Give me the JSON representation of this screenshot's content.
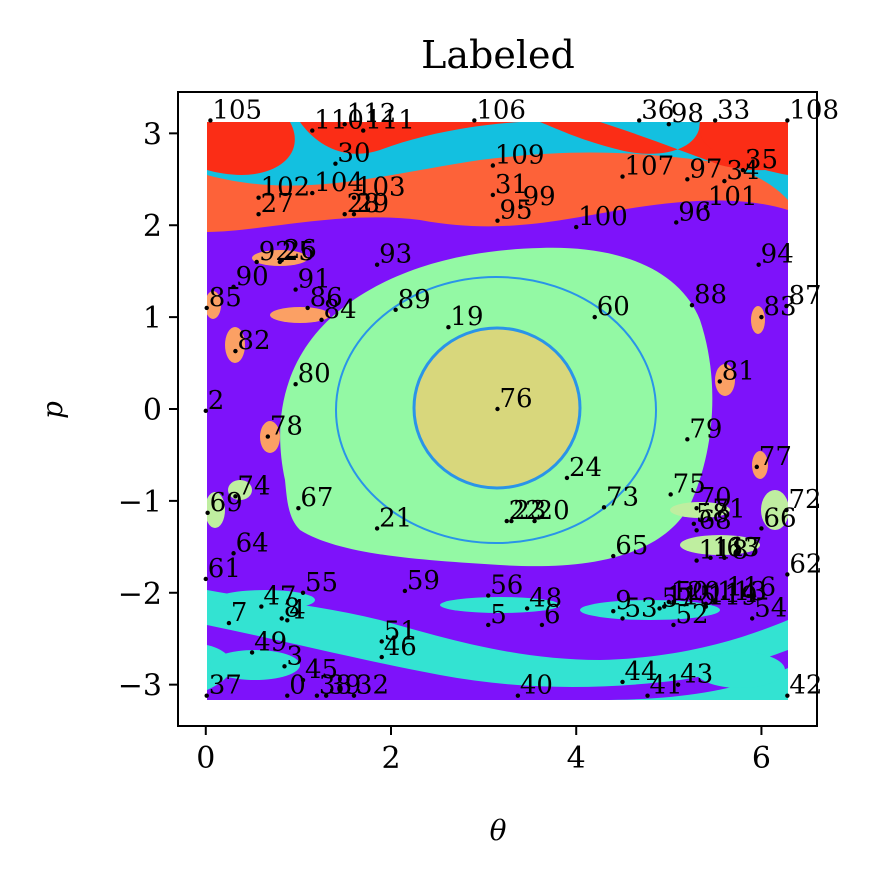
{
  "chart_data": {
    "type": "scatter",
    "title": "Labeled",
    "xlabel": "θ",
    "ylabel": "p",
    "xlim": [
      -0.3,
      6.6
    ],
    "ylim": [
      -3.45,
      3.45
    ],
    "xticks": [
      0,
      2,
      4,
      6
    ],
    "yticks": [
      -3,
      -2,
      -1,
      0,
      1,
      2,
      3
    ],
    "grid": false,
    "background_regions": {
      "description_colors": {
        "purple": "#7e12fa",
        "light_green": "#93f9a4",
        "khaki": "#d8d77c",
        "blue_ring": "#2a94e8",
        "red": "#fb2d16",
        "orange": "#fd6239",
        "cyan": "#13c0e0",
        "turquoise": "#33e3d2",
        "light_orange": "#fba064",
        "pale_green": "#bfeea0"
      }
    },
    "points": [
      {
        "label": "0",
        "x": 0.88,
        "y": -3.12
      },
      {
        "label": "2",
        "x": 0.0,
        "y": -0.02
      },
      {
        "label": "3",
        "x": 0.85,
        "y": -2.8
      },
      {
        "label": "4",
        "x": 0.88,
        "y": -2.3
      },
      {
        "label": "5",
        "x": 3.05,
        "y": -2.35
      },
      {
        "label": "6",
        "x": 3.63,
        "y": -2.35
      },
      {
        "label": "7",
        "x": 0.25,
        "y": -2.33
      },
      {
        "label": "8",
        "x": 0.82,
        "y": -2.28
      },
      {
        "label": "9",
        "x": 4.4,
        "y": -2.2
      },
      {
        "label": "19",
        "x": 2.62,
        "y": 0.89
      },
      {
        "label": "20",
        "x": 3.55,
        "y": -1.22
      },
      {
        "label": "21",
        "x": 1.85,
        "y": -1.3
      },
      {
        "label": "22",
        "x": 3.25,
        "y": -1.22
      },
      {
        "label": "23",
        "x": 3.3,
        "y": -1.22
      },
      {
        "label": "24",
        "x": 3.9,
        "y": -0.75
      },
      {
        "label": "25",
        "x": 0.8,
        "y": 1.6
      },
      {
        "label": "26",
        "x": 0.82,
        "y": 1.62
      },
      {
        "label": "27",
        "x": 0.57,
        "y": 2.12
      },
      {
        "label": "28",
        "x": 1.5,
        "y": 2.12
      },
      {
        "label": "29",
        "x": 1.6,
        "y": 2.12
      },
      {
        "label": "30",
        "x": 1.4,
        "y": 2.67
      },
      {
        "label": "31",
        "x": 3.1,
        "y": 2.33
      },
      {
        "label": "32",
        "x": 1.6,
        "y": -3.12
      },
      {
        "label": "33",
        "x": 5.5,
        "y": 3.14
      },
      {
        "label": "34",
        "x": 5.6,
        "y": 2.48
      },
      {
        "label": "35",
        "x": 5.8,
        "y": 2.6
      },
      {
        "label": "36",
        "x": 4.68,
        "y": 3.14
      },
      {
        "label": "37",
        "x": 0.01,
        "y": -3.12
      },
      {
        "label": "38",
        "x": 1.2,
        "y": -3.12
      },
      {
        "label": "39",
        "x": 1.3,
        "y": -3.12
      },
      {
        "label": "40",
        "x": 3.37,
        "y": -3.12
      },
      {
        "label": "41",
        "x": 4.77,
        "y": -3.12
      },
      {
        "label": "42",
        "x": 6.28,
        "y": -3.12
      },
      {
        "label": "43",
        "x": 5.1,
        "y": -3.0
      },
      {
        "label": "44",
        "x": 4.5,
        "y": -2.97
      },
      {
        "label": "45",
        "x": 1.05,
        "y": -2.95
      },
      {
        "label": "46",
        "x": 1.9,
        "y": -2.7
      },
      {
        "label": "47",
        "x": 0.6,
        "y": -2.15
      },
      {
        "label": "48",
        "x": 3.47,
        "y": -2.17
      },
      {
        "label": "49",
        "x": 0.5,
        "y": -2.65
      },
      {
        "label": "50",
        "x": 5.05,
        "y": -2.1
      },
      {
        "label": "51",
        "x": 1.9,
        "y": -2.53
      },
      {
        "label": "52",
        "x": 5.05,
        "y": -2.35
      },
      {
        "label": "53",
        "x": 4.5,
        "y": -2.28
      },
      {
        "label": "54",
        "x": 5.9,
        "y": -2.28
      },
      {
        "label": "55",
        "x": 1.05,
        "y": -2.0
      },
      {
        "label": "56",
        "x": 3.05,
        "y": -2.03
      },
      {
        "label": "57",
        "x": 4.9,
        "y": -2.17
      },
      {
        "label": "58",
        "x": 5.27,
        "y": -1.25
      },
      {
        "label": "59",
        "x": 2.15,
        "y": -1.98
      },
      {
        "label": "60",
        "x": 4.2,
        "y": 1.0
      },
      {
        "label": "61",
        "x": 0.0,
        "y": -1.85
      },
      {
        "label": "62",
        "x": 6.28,
        "y": -1.8
      },
      {
        "label": "63",
        "x": 5.6,
        "y": -1.62
      },
      {
        "label": "64",
        "x": 0.3,
        "y": -1.57
      },
      {
        "label": "65",
        "x": 4.4,
        "y": -1.6
      },
      {
        "label": "66",
        "x": 6.0,
        "y": -1.3
      },
      {
        "label": "67",
        "x": 1.0,
        "y": -1.08
      },
      {
        "label": "68",
        "x": 5.3,
        "y": -1.32
      },
      {
        "label": "69",
        "x": 0.02,
        "y": -1.13
      },
      {
        "label": "70",
        "x": 5.3,
        "y": -1.08
      },
      {
        "label": "71",
        "x": 5.45,
        "y": -1.2
      },
      {
        "label": "72",
        "x": 6.27,
        "y": -1.1
      },
      {
        "label": "73",
        "x": 4.3,
        "y": -1.07
      },
      {
        "label": "74",
        "x": 0.32,
        "y": -0.95
      },
      {
        "label": "75",
        "x": 5.02,
        "y": -0.93
      },
      {
        "label": "76",
        "x": 3.15,
        "y": 0.0
      },
      {
        "label": "77",
        "x": 5.95,
        "y": -0.63
      },
      {
        "label": "78",
        "x": 0.67,
        "y": -0.3
      },
      {
        "label": "79",
        "x": 5.2,
        "y": -0.33
      },
      {
        "label": "80",
        "x": 0.97,
        "y": 0.27
      },
      {
        "label": "81",
        "x": 5.55,
        "y": 0.3
      },
      {
        "label": "82",
        "x": 0.32,
        "y": 0.63
      },
      {
        "label": "83",
        "x": 6.0,
        "y": 1.0
      },
      {
        "label": "84",
        "x": 1.25,
        "y": 0.97
      },
      {
        "label": "85",
        "x": 0.01,
        "y": 1.1
      },
      {
        "label": "86",
        "x": 1.1,
        "y": 1.1
      },
      {
        "label": "87",
        "x": 6.27,
        "y": 1.12
      },
      {
        "label": "88",
        "x": 5.25,
        "y": 1.13
      },
      {
        "label": "89",
        "x": 2.05,
        "y": 1.08
      },
      {
        "label": "90",
        "x": 0.3,
        "y": 1.33
      },
      {
        "label": "91",
        "x": 0.97,
        "y": 1.3
      },
      {
        "label": "92",
        "x": 0.55,
        "y": 1.6
      },
      {
        "label": "93",
        "x": 1.85,
        "y": 1.57
      },
      {
        "label": "94",
        "x": 5.97,
        "y": 1.57
      },
      {
        "label": "95",
        "x": 3.15,
        "y": 2.05
      },
      {
        "label": "96",
        "x": 5.08,
        "y": 2.03
      },
      {
        "label": "97",
        "x": 5.2,
        "y": 2.5
      },
      {
        "label": "98",
        "x": 5.0,
        "y": 3.1
      },
      {
        "label": "99",
        "x": 3.4,
        "y": 2.2
      },
      {
        "label": "100",
        "x": 4.0,
        "y": 1.98
      },
      {
        "label": "101",
        "x": 5.4,
        "y": 2.2
      },
      {
        "label": "102",
        "x": 0.57,
        "y": 2.3
      },
      {
        "label": "103",
        "x": 1.6,
        "y": 2.3
      },
      {
        "label": "104",
        "x": 1.15,
        "y": 2.35
      },
      {
        "label": "105",
        "x": 0.05,
        "y": 3.14
      },
      {
        "label": "106",
        "x": 2.9,
        "y": 3.14
      },
      {
        "label": "107",
        "x": 4.5,
        "y": 2.53
      },
      {
        "label": "108",
        "x": 6.28,
        "y": 3.14
      },
      {
        "label": "109",
        "x": 3.1,
        "y": 2.65
      },
      {
        "label": "110",
        "x": 1.15,
        "y": 3.03
      },
      {
        "label": "111",
        "x": 1.7,
        "y": 3.03
      },
      {
        "label": "112",
        "x": 1.5,
        "y": 3.1
      },
      {
        "label": "113",
        "x": 5.5,
        "y": -2.1
      },
      {
        "label": "114",
        "x": 5.4,
        "y": -2.12
      },
      {
        "label": "115",
        "x": 4.95,
        "y": -2.15
      },
      {
        "label": "116",
        "x": 5.6,
        "y": -2.05
      },
      {
        "label": "117",
        "x": 5.45,
        "y": -1.62
      },
      {
        "label": "118",
        "x": 5.3,
        "y": -1.65
      },
      {
        "label": "119",
        "x": 5.4,
        "y": -2.15
      },
      {
        "label": "120",
        "x": 5.0,
        "y": -2.1
      }
    ]
  }
}
